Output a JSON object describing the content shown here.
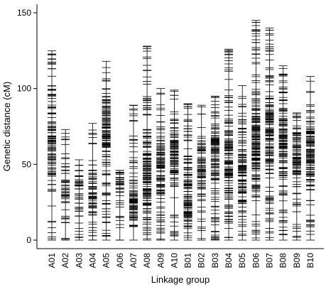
{
  "chart_data": {
    "type": "linkage_map",
    "ylabel": "Genetic distance (cM)",
    "xlabel": "Linkage group",
    "ylim": [
      0,
      150
    ],
    "yticks": [
      0,
      50,
      100,
      150
    ],
    "groups": [
      "A01",
      "A02",
      "A03",
      "A04",
      "A05",
      "A06",
      "A07",
      "A08",
      "A09",
      "A10",
      "B01",
      "B02",
      "B03",
      "B04",
      "B05",
      "B06",
      "B07",
      "B08",
      "B09",
      "B10"
    ],
    "lengths_cM": [
      125,
      73,
      53,
      77,
      118,
      46,
      89,
      128,
      100,
      99,
      90,
      89,
      95,
      126,
      102,
      145,
      140,
      115,
      84,
      108
    ],
    "marker_counts": [
      120,
      50,
      45,
      70,
      140,
      40,
      90,
      150,
      110,
      100,
      120,
      85,
      120,
      140,
      110,
      170,
      155,
      130,
      100,
      120
    ],
    "density_peak_cM": [
      65,
      35,
      35,
      30,
      75,
      38,
      25,
      40,
      50,
      55,
      25,
      50,
      60,
      50,
      45,
      65,
      70,
      60,
      55,
      60
    ],
    "grid": false,
    "legend": "none"
  }
}
